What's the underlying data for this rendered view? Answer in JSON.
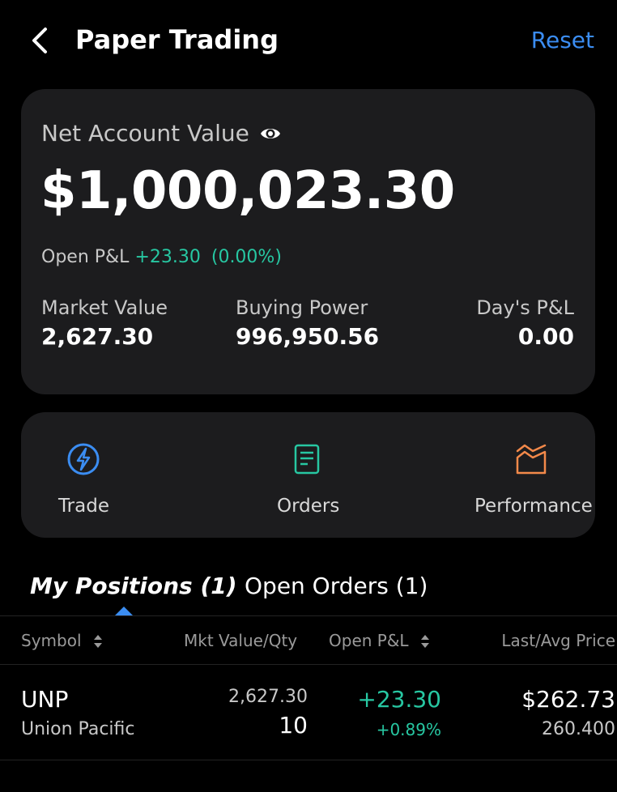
{
  "colors": {
    "background": "#000000",
    "card": "#1c1c1e",
    "accent_blue": "#3b8df2",
    "positive_green": "#27c7a2",
    "orange": "#f3894a"
  },
  "header": {
    "title": "Paper Trading",
    "reset_label": "Reset",
    "back_icon": "chevron-left-icon"
  },
  "account": {
    "label": "Net Account Value",
    "eye_icon": "eye-icon",
    "value": "$1,000,023.30",
    "open_pl_label": "Open P&L",
    "open_pl_value": "+23.30",
    "open_pl_pct": "(0.00%)",
    "market_value_label": "Market Value",
    "market_value": "2,627.30",
    "buying_power_label": "Buying Power",
    "buying_power": "996,950.56",
    "days_pl_label": "Day's P&L",
    "days_pl": "0.00"
  },
  "actions": [
    {
      "label": "Trade",
      "icon": "lightning-icon"
    },
    {
      "label": "Orders",
      "icon": "document-icon"
    },
    {
      "label": "Performance",
      "icon": "chart-area-icon"
    }
  ],
  "tabs": {
    "active": "My Positions (1)",
    "other": "Open Orders (1)"
  },
  "table": {
    "headers": {
      "symbol": "Symbol",
      "mkt_value_qty": "Mkt Value/Qty",
      "open_pl": "Open P&L",
      "last_avg_price": "Last/Avg Price"
    },
    "rows": [
      {
        "symbol": "UNP",
        "name": "Union Pacific",
        "mkt_value": "2,627.30",
        "qty": "10",
        "open_pl": "+23.30",
        "open_pl_pct": "+0.89%",
        "last_price": "$262.73",
        "avg_price": "260.400"
      }
    ]
  }
}
